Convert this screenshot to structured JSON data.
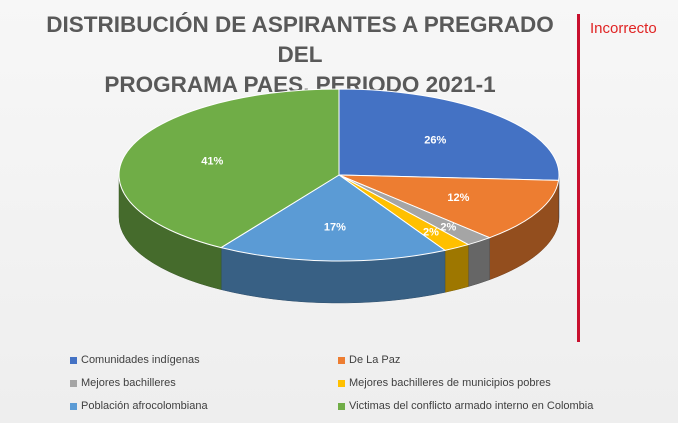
{
  "title_lines": [
    "DISTRIBUCIÓN DE ASPIRANTES A PREGRADO DEL",
    "PROGRAMA PAES, PERIODO 2021-1"
  ],
  "side_label": "Incorrecto",
  "chart_data": {
    "type": "pie",
    "title": "DISTRIBUCIÓN DE ASPIRANTES A PREGRADO DEL PROGRAMA PAES, PERIODO 2021-1",
    "style": "3d",
    "legend_position": "bottom",
    "slices": [
      {
        "name": "Comunidades indígenas",
        "value": 26,
        "label": "26%",
        "color": "#4472c4"
      },
      {
        "name": "De La Paz",
        "value": 12,
        "label": "12%",
        "color": "#ed7d31"
      },
      {
        "name": "Mejores bachilleres",
        "value": 2,
        "label": "2%",
        "color": "#a5a5a5"
      },
      {
        "name": "Mejores bachilleres de municipios pobres",
        "value": 2,
        "label": "2%",
        "color": "#ffc000"
      },
      {
        "name": "Población afrocolombiana",
        "value": 17,
        "label": "17%",
        "color": "#5b9bd5"
      },
      {
        "name": "Victimas del conflicto armado interno en Colombia",
        "value": 41,
        "label": "41%",
        "color": "#70ad47"
      }
    ]
  }
}
